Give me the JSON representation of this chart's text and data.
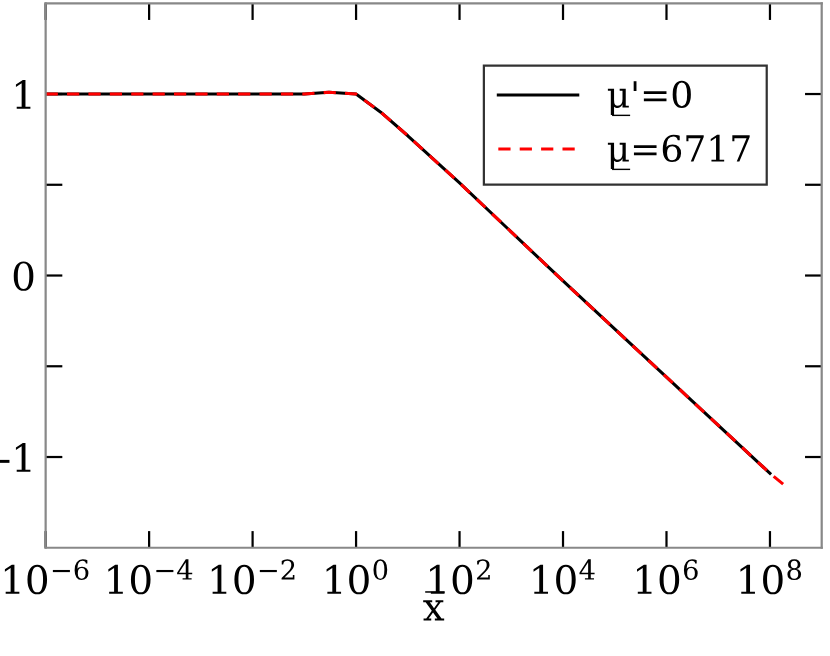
{
  "chart_data": {
    "type": "line",
    "xlabel": "x̅",
    "log": "x",
    "xlim": [
      1e-06,
      1000000000.0
    ],
    "ylim": [
      -1.5,
      1.5
    ],
    "xticks": [
      {
        "value": 1e-06,
        "label": "10$^{−6}$"
      },
      {
        "value": 0.0001,
        "label": "10$^{−4}$"
      },
      {
        "value": 0.01,
        "label": "10$^{−2}$"
      },
      {
        "value": 1,
        "label": "10$^{0}$"
      },
      {
        "value": 100,
        "label": "10$^{2}$"
      },
      {
        "value": 10000,
        "label": "10$^{4}$"
      },
      {
        "value": 1000000,
        "label": "10$^{6}$"
      },
      {
        "value": 100000000,
        "label": "10$^{8}$"
      }
    ],
    "yticks": [
      {
        "value": -1,
        "label": "-1"
      },
      {
        "value": -0.5,
        "label": null
      },
      0,
      {
        "value": 0.5,
        "label": null
      },
      1
    ],
    "legend": "top right",
    "grid": false,
    "series": [
      {
        "name": "μ̲'=0",
        "color": "#000000",
        "line_style": "solid",
        "x": [
          1e-06,
          0.0001,
          0.01,
          0.1,
          0.3,
          1,
          3,
          10,
          100,
          10000,
          1000000,
          100000000
        ],
        "values": [
          1.0,
          1.0,
          1.0,
          1.0,
          1.01,
          1.0,
          0.9,
          0.77,
          0.51,
          -0.03,
          -0.56,
          -1.09
        ]
      },
      {
        "name": "μ̲=6717",
        "color": "#ff0000",
        "line_style": "dashed",
        "x": [
          1e-06,
          0.0001,
          0.01,
          0.1,
          0.3,
          1,
          3,
          10,
          100,
          10000,
          1000000,
          100000000,
          200000000
        ],
        "values": [
          1.0,
          1.0,
          1.0,
          1.0,
          1.01,
          1.0,
          0.9,
          0.77,
          0.51,
          -0.03,
          -0.56,
          -1.09,
          -1.16
        ]
      }
    ]
  }
}
